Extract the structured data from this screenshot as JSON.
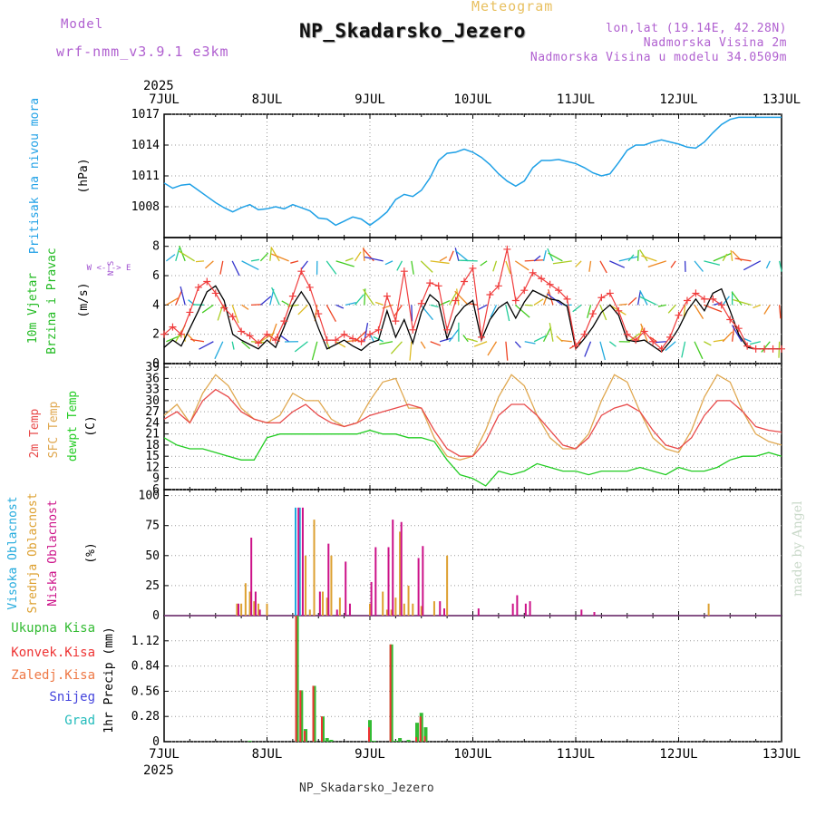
{
  "header": {
    "title": "NP_Skadarsko_Jezero",
    "subtitle": "Meteogram",
    "model_label": "Model",
    "model_name": "wrf-nmm_v3.9.1 e3km",
    "coords": "lon,lat (19.14E, 42.28N)",
    "altitude": "Nadmorska Visina 2m",
    "model_altitude": "Nadmorska Visina u modelu 34.0509m",
    "footer_station": "NP_Skadarsko_Jezero",
    "watermark": "made by Angel"
  },
  "colors": {
    "pressure": "#1ea0e6",
    "wind_speed": "#000000",
    "wind_gust": "#f03c3c",
    "t2m": "#e84a4a",
    "tsfc": "#e0a850",
    "dewpt": "#22cc22",
    "high_cloud": "#22aadd",
    "mid_cloud": "#dda030",
    "low_cloud": "#cc1188",
    "total_precip": "#33bb33",
    "conv_precip": "#ee3333",
    "frz_precip": "#ee7744",
    "snow": "#4444dd",
    "graupel": "#22bbbb"
  },
  "chart_data": [
    {
      "type": "axis",
      "year_top": "2025",
      "year_bottom": "2025",
      "day_labels": [
        "7JUL",
        "8JUL",
        "9JUL",
        "10JUL",
        "11JUL",
        "12JUL",
        "13JUL"
      ],
      "x_range_hours": [
        0,
        144
      ]
    },
    {
      "type": "line",
      "title": "Pritisak na nivou mora",
      "ylabel": "(hPa)",
      "ylim": [
        1005,
        1017
      ],
      "yticks": [
        1008,
        1011,
        1014,
        1017
      ],
      "series": [
        {
          "name": "MSLP",
          "x": [
            0,
            2,
            4,
            6,
            8,
            10,
            12,
            14,
            16,
            18,
            20,
            22,
            24,
            26,
            28,
            30,
            32,
            34,
            36,
            38,
            40,
            42,
            44,
            46,
            48,
            50,
            52,
            54,
            56,
            58,
            60,
            62,
            64,
            66,
            68,
            70,
            72,
            74,
            76,
            78,
            80,
            82,
            84,
            86,
            88,
            90,
            92,
            94,
            96,
            98,
            100,
            102,
            104,
            106,
            108,
            110,
            112,
            114,
            116,
            118,
            120,
            122,
            124,
            126,
            128,
            130,
            132,
            134,
            136,
            138,
            140,
            142,
            144
          ],
          "values": [
            1010.3,
            1009.8,
            1010.1,
            1010.2,
            1009.6,
            1009.0,
            1008.4,
            1007.9,
            1007.5,
            1007.9,
            1008.2,
            1007.7,
            1007.8,
            1008.0,
            1007.8,
            1008.2,
            1007.9,
            1007.6,
            1006.9,
            1006.8,
            1006.2,
            1006.6,
            1007.0,
            1006.8,
            1006.2,
            1006.8,
            1007.5,
            1008.7,
            1009.2,
            1009.0,
            1009.6,
            1010.8,
            1012.5,
            1013.2,
            1013.3,
            1013.6,
            1013.3,
            1012.8,
            1012.1,
            1011.2,
            1010.5,
            1010.0,
            1010.5,
            1011.8,
            1012.5,
            1012.5,
            1012.6,
            1012.4,
            1012.2,
            1011.8,
            1011.3,
            1011.0,
            1011.2,
            1012.3,
            1013.5,
            1014.0,
            1014.0,
            1014.3,
            1014.5,
            1014.3,
            1014.1,
            1013.8,
            1013.7,
            1014.3,
            1015.2,
            1016.0,
            1016.5,
            1016.7,
            1016.7,
            1016.7,
            1016.7,
            1016.7,
            1016.7
          ]
        }
      ]
    },
    {
      "type": "line",
      "title": "10m Vjetar Brzina i Pravac",
      "ylabel": "(m/s)",
      "ylim": [
        0,
        8.6
      ],
      "yticks": [
        0,
        2,
        4,
        6,
        8
      ],
      "compass_label": "W <-|-> E",
      "compass_ns": "N S",
      "series": [
        {
          "name": "wind_speed",
          "x": [
            0,
            2,
            4,
            6,
            8,
            10,
            12,
            14,
            16,
            18,
            20,
            22,
            24,
            26,
            28,
            30,
            32,
            34,
            36,
            38,
            40,
            42,
            44,
            46,
            48,
            50,
            52,
            54,
            56,
            58,
            60,
            62,
            64,
            66,
            68,
            70,
            72,
            74,
            76,
            78,
            80,
            82,
            84,
            86,
            88,
            90,
            92,
            94,
            96,
            98,
            100,
            102,
            104,
            106,
            108,
            110,
            112,
            114,
            116,
            118,
            120,
            122,
            124,
            126,
            128,
            130,
            132,
            134,
            136,
            138,
            140,
            142,
            144
          ],
          "values": [
            1.1,
            1.6,
            1.2,
            2.4,
            3.6,
            4.9,
            5.3,
            4.3,
            2.0,
            1.6,
            1.3,
            1.0,
            1.6,
            1.1,
            2.5,
            4.0,
            4.9,
            4.0,
            2.4,
            1.0,
            1.3,
            1.6,
            1.2,
            0.9,
            1.4,
            1.6,
            3.6,
            1.8,
            3.0,
            1.4,
            3.5,
            4.7,
            4.2,
            1.7,
            3.2,
            3.9,
            4.3,
            1.6,
            3.0,
            3.8,
            4.2,
            3.1,
            4.2,
            5.0,
            4.7,
            4.4,
            4.3,
            3.9,
            1.0,
            1.7,
            2.5,
            3.5,
            4.0,
            3.3,
            1.6,
            1.5,
            1.6,
            1.2,
            0.8,
            1.5,
            2.4,
            3.6,
            4.4,
            3.6,
            4.8,
            5.1,
            3.6,
            2.0,
            1.1,
            1.0,
            1.0,
            1.0,
            1.0
          ]
        },
        {
          "name": "wind_gust",
          "x": [
            0,
            2,
            4,
            6,
            8,
            10,
            12,
            14,
            16,
            18,
            20,
            22,
            24,
            26,
            28,
            30,
            32,
            34,
            36,
            38,
            40,
            42,
            44,
            46,
            48,
            50,
            52,
            54,
            56,
            58,
            60,
            62,
            64,
            66,
            68,
            70,
            72,
            74,
            76,
            78,
            80,
            82,
            84,
            86,
            88,
            90,
            92,
            94,
            96,
            98,
            100,
            102,
            104,
            106,
            108,
            110,
            112,
            114,
            116,
            118,
            120,
            122,
            124,
            126,
            128,
            130,
            132,
            134,
            136,
            138,
            140,
            142,
            144
          ],
          "values": [
            2.0,
            2.5,
            2.0,
            3.5,
            5.2,
            5.6,
            4.8,
            3.8,
            3.2,
            2.2,
            1.9,
            1.4,
            2.0,
            1.6,
            2.9,
            4.6,
            6.3,
            5.2,
            3.4,
            1.6,
            1.6,
            2.0,
            1.7,
            1.5,
            2.0,
            2.3,
            4.6,
            2.9,
            6.3,
            2.3,
            4.1,
            5.5,
            5.3,
            2.3,
            4.3,
            5.6,
            6.5,
            1.8,
            4.7,
            5.3,
            7.8,
            4.3,
            5.0,
            6.2,
            5.8,
            5.4,
            5.0,
            4.4,
            1.2,
            2.0,
            3.4,
            4.5,
            4.8,
            3.6,
            2.0,
            1.6,
            2.2,
            1.5,
            1.0,
            1.8,
            3.3,
            4.3,
            4.8,
            4.4,
            4.4,
            4.0,
            3.0,
            2.4,
            1.2,
            1.0,
            1.0,
            1.0,
            1.0
          ]
        }
      ]
    },
    {
      "type": "line",
      "title": "2m Temp / SFC Temp / dewpt Temp",
      "ylabel": "(C)",
      "ylim": [
        6,
        40
      ],
      "yticks": [
        6,
        9,
        12,
        15,
        18,
        21,
        24,
        27,
        30,
        33,
        36,
        39
      ],
      "series": [
        {
          "name": "2m Temp",
          "x": [
            0,
            3,
            6,
            9,
            12,
            15,
            18,
            21,
            24,
            27,
            30,
            33,
            36,
            39,
            42,
            45,
            48,
            51,
            54,
            57,
            60,
            63,
            66,
            69,
            72,
            75,
            78,
            81,
            84,
            87,
            90,
            93,
            96,
            99,
            102,
            105,
            108,
            111,
            114,
            117,
            120,
            123,
            126,
            129,
            132,
            135,
            138,
            141,
            144
          ],
          "values": [
            25,
            27,
            24,
            30,
            33,
            31,
            27,
            25,
            24,
            24,
            27,
            29,
            26,
            24,
            23,
            24,
            26,
            27,
            28,
            29,
            28,
            22,
            17,
            15,
            15,
            19,
            26,
            29,
            29,
            26,
            22,
            18,
            17,
            20,
            26,
            28,
            29,
            27,
            22,
            18,
            17,
            20,
            26,
            30,
            30,
            27,
            23,
            22,
            21.5
          ]
        },
        {
          "name": "SFC Temp",
          "x": [
            0,
            3,
            6,
            9,
            12,
            15,
            18,
            21,
            24,
            27,
            30,
            33,
            36,
            39,
            42,
            45,
            48,
            51,
            54,
            57,
            60,
            63,
            66,
            69,
            72,
            75,
            78,
            81,
            84,
            87,
            90,
            93,
            96,
            99,
            102,
            105,
            108,
            111,
            114,
            117,
            120,
            123,
            126,
            129,
            132,
            135,
            138,
            141,
            144
          ],
          "values": [
            26,
            29,
            24,
            32,
            37,
            34,
            28,
            25,
            24,
            26,
            32,
            30,
            30,
            25,
            23,
            24,
            30,
            35,
            36,
            28,
            28,
            20,
            15,
            14,
            15,
            22,
            31,
            37,
            34,
            26,
            20,
            17,
            17,
            21,
            30,
            37,
            35,
            27,
            20,
            17,
            16,
            22,
            31,
            37,
            35,
            27,
            21,
            19,
            18
          ]
        },
        {
          "name": "dewpt Temp",
          "x": [
            0,
            3,
            6,
            9,
            12,
            15,
            18,
            21,
            24,
            27,
            30,
            33,
            36,
            39,
            42,
            45,
            48,
            51,
            54,
            57,
            60,
            63,
            66,
            69,
            72,
            75,
            78,
            81,
            84,
            87,
            90,
            93,
            96,
            99,
            102,
            105,
            108,
            111,
            114,
            117,
            120,
            123,
            126,
            129,
            132,
            135,
            138,
            141,
            144
          ],
          "values": [
            20,
            18,
            17,
            17,
            16,
            15,
            14,
            14,
            20,
            21,
            21,
            21,
            21,
            21,
            21,
            21,
            22,
            21,
            21,
            20,
            20,
            19,
            14,
            10,
            9,
            7,
            11,
            10,
            11,
            13,
            12,
            11,
            11,
            10,
            11,
            11,
            11,
            12,
            11,
            10,
            12,
            11,
            11,
            12,
            14,
            15,
            15,
            16,
            15
          ]
        }
      ]
    },
    {
      "type": "bar",
      "title": "Visoka / Srednja / Niska Oblacnost",
      "ylabel": "(%)",
      "ylim": [
        0,
        105
      ],
      "yticks": [
        0,
        25,
        50,
        75,
        100
      ],
      "series": [
        {
          "name": "Visoka Oblacnost",
          "x": [
            31,
            32
          ],
          "values": [
            90,
            90
          ]
        },
        {
          "name": "Srednja Oblacnost",
          "x": [
            17,
            18,
            19,
            20,
            21,
            22,
            24,
            33,
            34,
            35,
            37,
            38,
            39,
            41,
            48,
            51,
            52,
            53,
            54,
            55,
            56,
            57,
            58,
            60,
            63,
            66,
            127
          ],
          "values": [
            10,
            10,
            27,
            20,
            12,
            10,
            10,
            50,
            5,
            80,
            20,
            15,
            50,
            15,
            10,
            20,
            5,
            5,
            15,
            70,
            10,
            25,
            10,
            8,
            12,
            50,
            10
          ]
        },
        {
          "name": "Niska Oblacnost",
          "x": [
            17,
            20,
            21,
            22,
            31,
            32,
            36,
            38,
            40,
            42,
            43,
            48,
            49,
            52,
            53,
            55,
            59,
            60,
            64,
            65,
            73,
            81,
            82,
            84,
            85,
            97,
            100
          ],
          "values": [
            10,
            65,
            20,
            5,
            90,
            90,
            20,
            60,
            5,
            45,
            10,
            28,
            57,
            57,
            80,
            78,
            48,
            58,
            12,
            6,
            6,
            10,
            17,
            10,
            12,
            5,
            3
          ]
        }
      ]
    },
    {
      "type": "bar",
      "title": "Ukupna Kisa / Konvek.Kisa / Zaledj.Kisa / Snijeg / Grad",
      "ylabel": "1hr Precip (mm)",
      "ylim": [
        0,
        1.4
      ],
      "yticks": [
        0,
        0.28,
        0.56,
        0.84,
        1.12
      ],
      "ytick_labels": [
        "0",
        "0.28",
        "0.56",
        "0.84",
        "1.12"
      ],
      "series": [
        {
          "name": "Ukupna Kisa",
          "x": [
            20,
            31,
            32,
            33,
            35,
            37,
            38,
            39,
            48,
            49,
            53,
            54,
            55,
            57,
            59,
            60,
            61
          ],
          "values": [
            0.01,
            1.4,
            0.57,
            0.14,
            0.62,
            0.28,
            0.04,
            0.02,
            0.24,
            0.01,
            1.08,
            0.01,
            0.04,
            0.02,
            0.21,
            0.32,
            0.16
          ]
        },
        {
          "name": "Konvek.Kisa",
          "x": [
            31,
            32,
            33,
            35,
            37,
            48,
            53,
            59,
            60,
            61
          ],
          "values": [
            1.4,
            0.57,
            0.12,
            0.62,
            0.28,
            0.16,
            1.08,
            0.05,
            0.28,
            0.06
          ]
        }
      ]
    }
  ]
}
